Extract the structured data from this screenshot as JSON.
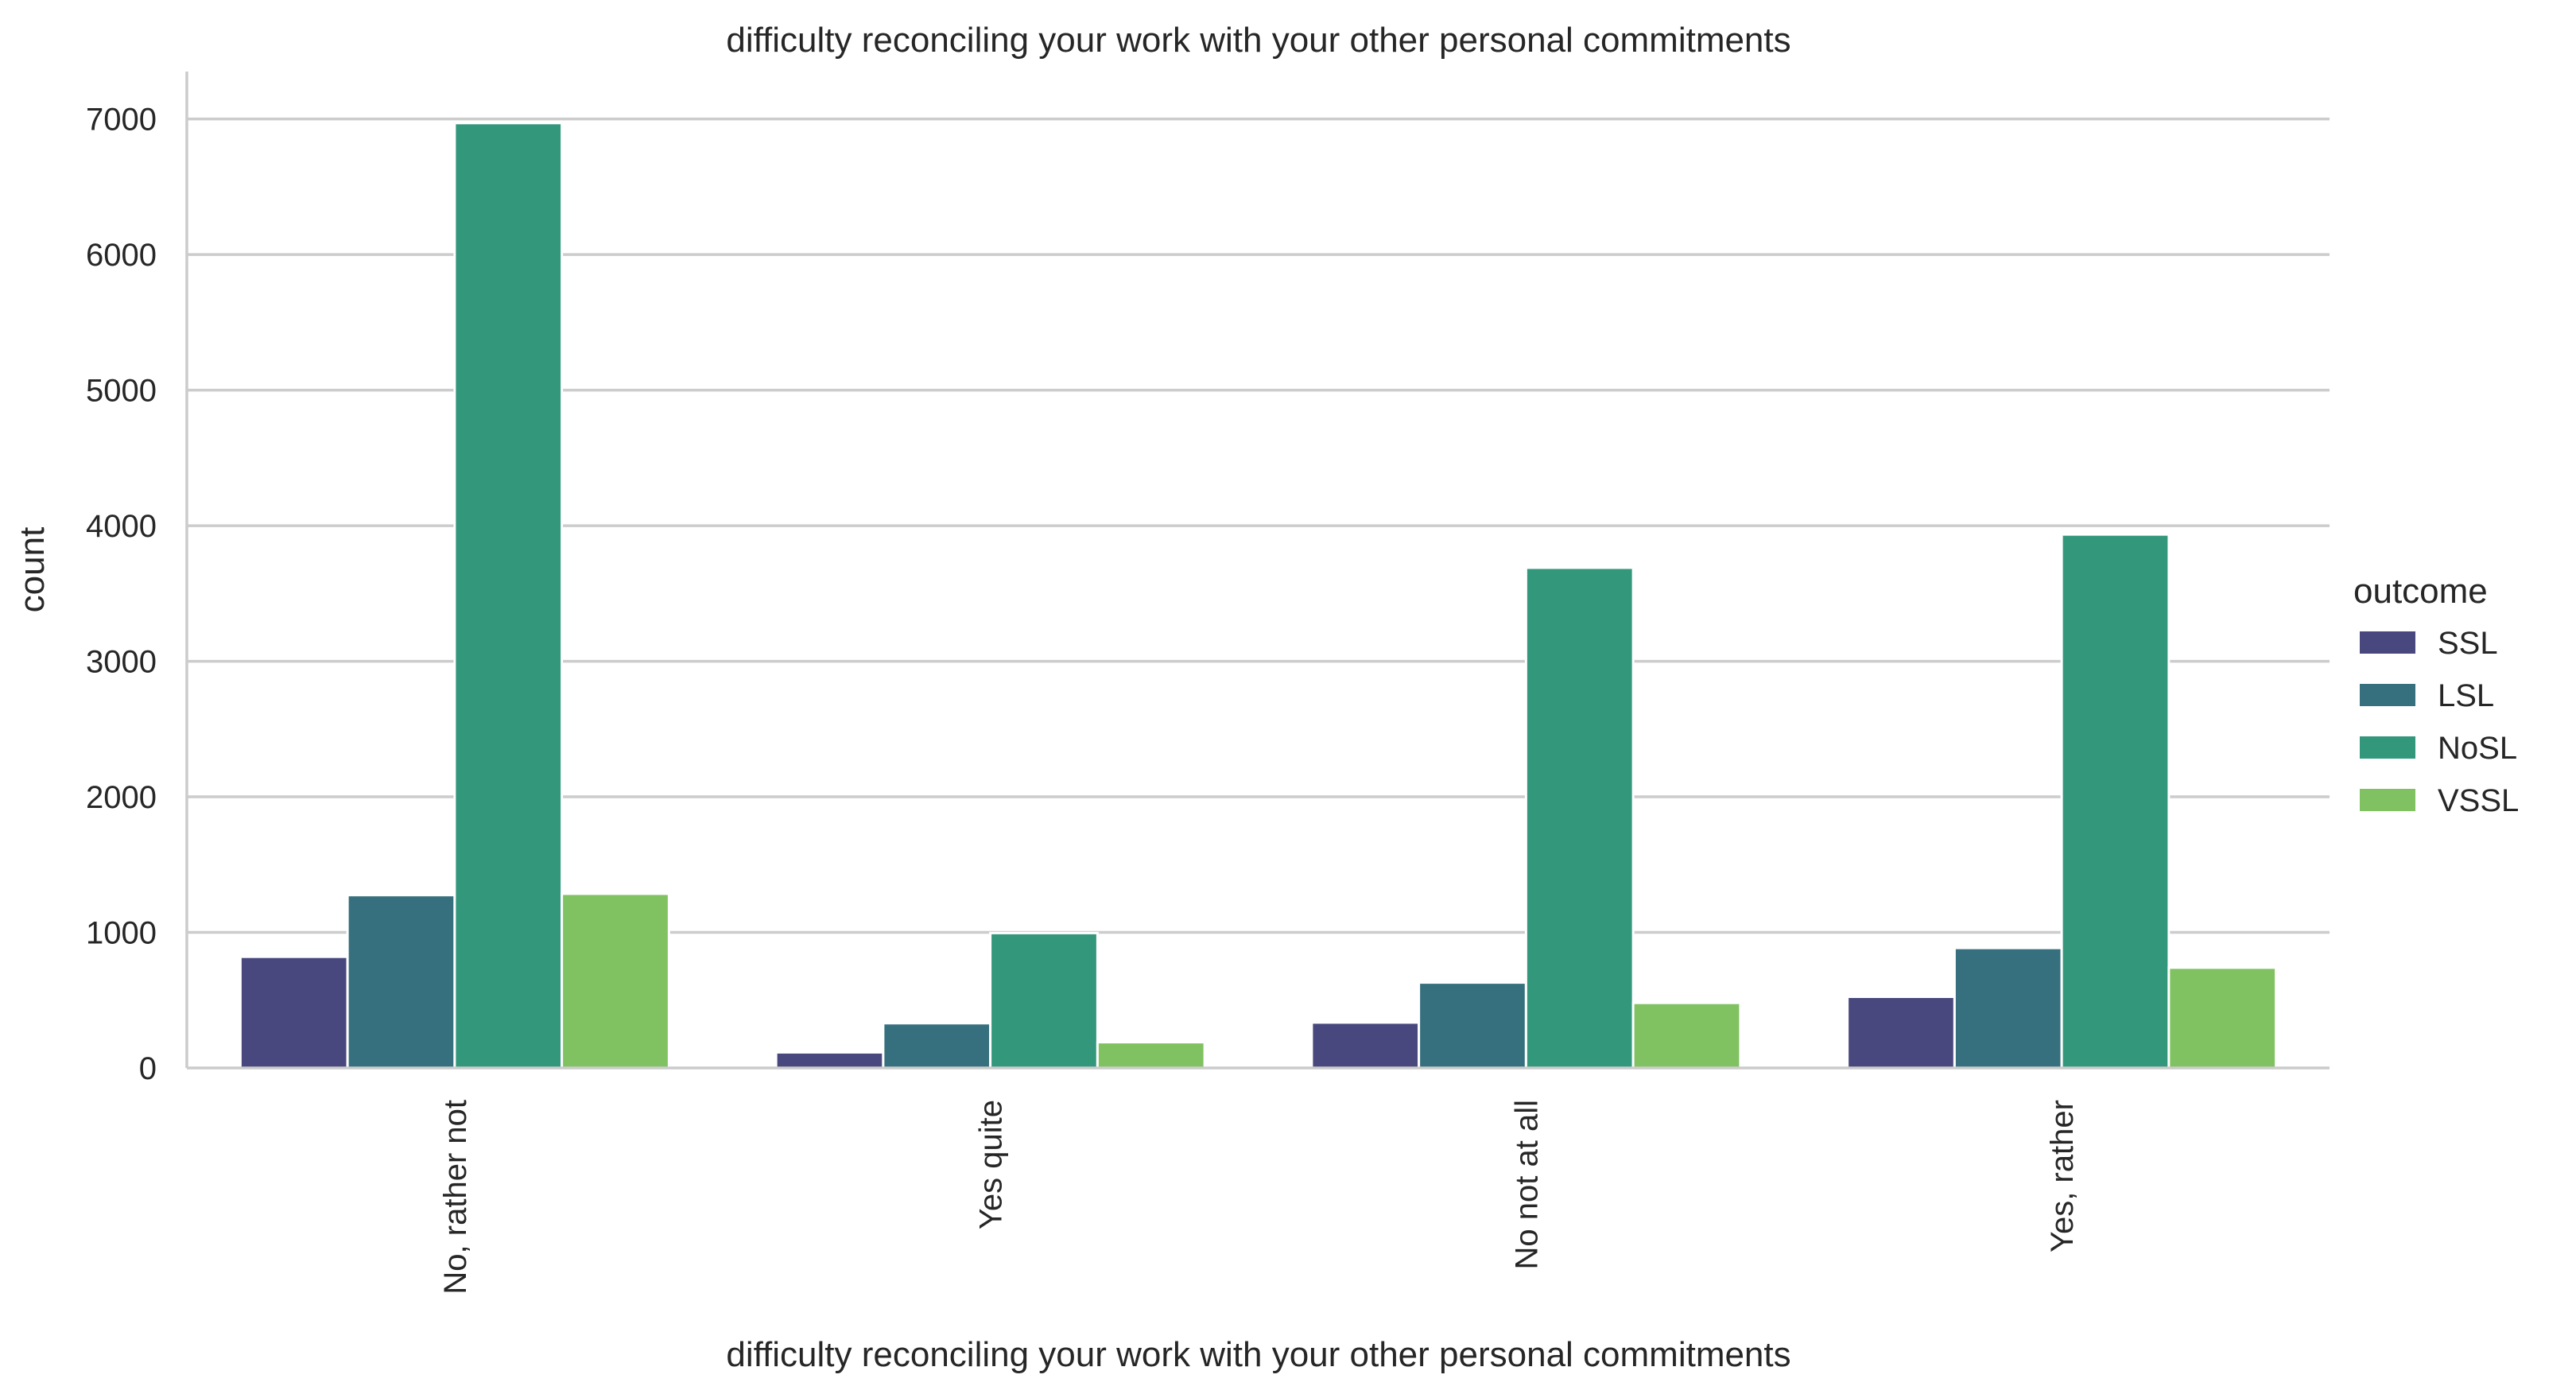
{
  "chart_data": {
    "type": "bar",
    "title": "difficulty reconciling your work with your other personal commitments",
    "xlabel": "difficulty reconciling your work with your other personal commitments",
    "ylabel": "count",
    "categories": [
      "No, rather not",
      "Yes quite",
      "No not at all",
      "Yes, rather"
    ],
    "series": [
      {
        "name": "SSL",
        "color": "#48487e",
        "values": [
          820,
          115,
          335,
          525
        ]
      },
      {
        "name": "LSL",
        "color": "#36707e",
        "values": [
          1275,
          330,
          630,
          885
        ]
      },
      {
        "name": "NoSL",
        "color": "#33977c",
        "values": [
          6970,
          995,
          3690,
          3935
        ]
      },
      {
        "name": "VSSL",
        "color": "#80c261",
        "values": [
          1285,
          190,
          480,
          740
        ]
      }
    ],
    "ylim": [
      0,
      7350
    ],
    "yticks": [
      0,
      1000,
      2000,
      3000,
      4000,
      5000,
      6000,
      7000
    ],
    "grid": "y-major",
    "legend": {
      "title": "outcome",
      "placement": "right"
    }
  }
}
